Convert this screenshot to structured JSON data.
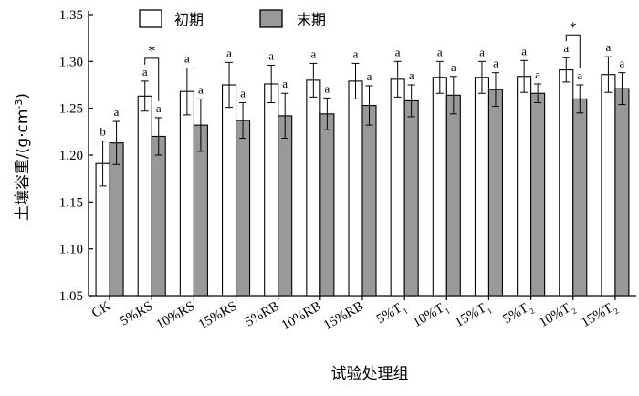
{
  "chart_data": {
    "type": "bar",
    "ylabel": "土壤容重/(g·cm⁻³)",
    "ylabel_parts": {
      "main": "土壤容重/(g·cm",
      "sup": "-3",
      "end": ")"
    },
    "xlabel": "试验处理组",
    "ylim": [
      1.05,
      1.35
    ],
    "yticks": [
      "1.05",
      "1.10",
      "1.15",
      "1.20",
      "1.25",
      "1.30",
      "1.35"
    ],
    "ytick_values": [
      1.05,
      1.1,
      1.15,
      1.2,
      1.25,
      1.3,
      1.35
    ],
    "legend_position": "top-left",
    "categories": [
      {
        "label": "CK",
        "main": "CK",
        "sub": ""
      },
      {
        "label": "5%RS",
        "main": "5%RS",
        "sub": ""
      },
      {
        "label": "10%RS",
        "main": "10%RS",
        "sub": ""
      },
      {
        "label": "15%RS",
        "main": "15%RS",
        "sub": ""
      },
      {
        "label": "5%RB",
        "main": "5%RB",
        "sub": ""
      },
      {
        "label": "10%RB",
        "main": "10%RB",
        "sub": ""
      },
      {
        "label": "15%RB",
        "main": "15%RB",
        "sub": ""
      },
      {
        "label": "5%T1",
        "main": "5%T",
        "sub": "1"
      },
      {
        "label": "10%T1",
        "main": "10%T",
        "sub": "1"
      },
      {
        "label": "15%T1",
        "main": "15%T",
        "sub": "1"
      },
      {
        "label": "5%T2",
        "main": "5%T",
        "sub": "2"
      },
      {
        "label": "10%T2",
        "main": "10%T",
        "sub": "2"
      },
      {
        "label": "15%T2",
        "main": "15%T",
        "sub": "2"
      }
    ],
    "series": [
      {
        "name": "初期",
        "color": "#ffffff",
        "values": [
          1.191,
          1.263,
          1.268,
          1.275,
          1.276,
          1.28,
          1.279,
          1.281,
          1.283,
          1.283,
          1.284,
          1.291,
          1.286
        ],
        "errors": [
          0.024,
          0.016,
          0.025,
          0.024,
          0.02,
          0.018,
          0.019,
          0.019,
          0.017,
          0.017,
          0.017,
          0.013,
          0.019
        ],
        "labels": [
          "b",
          "a",
          "a",
          "a",
          "a",
          "a",
          "a",
          "a",
          "a",
          "a",
          "a",
          "a",
          "a"
        ]
      },
      {
        "name": "末期",
        "color": "#999999",
        "values": [
          1.213,
          1.22,
          1.232,
          1.237,
          1.242,
          1.244,
          1.253,
          1.258,
          1.264,
          1.27,
          1.266,
          1.26,
          1.271
        ],
        "errors": [
          0.023,
          0.02,
          0.028,
          0.019,
          0.024,
          0.017,
          0.021,
          0.017,
          0.02,
          0.018,
          0.01,
          0.015,
          0.017
        ],
        "labels": [
          "a",
          "a",
          "a",
          "a",
          "a",
          "a",
          "a",
          "a",
          "a",
          "a",
          "a",
          "a",
          "a"
        ]
      }
    ],
    "significance": [
      {
        "category_index": 1,
        "mark": "*"
      },
      {
        "category_index": 11,
        "mark": "*"
      }
    ]
  }
}
